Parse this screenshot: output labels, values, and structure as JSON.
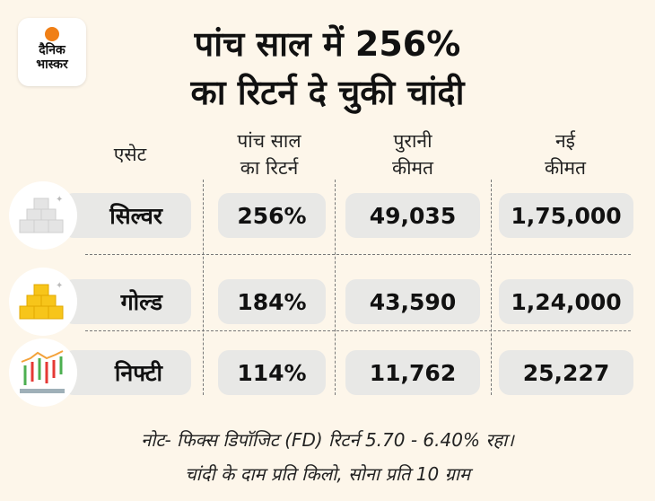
{
  "logo": {
    "line1": "दैनिक",
    "line2": "भास्कर",
    "color": "#f07f16"
  },
  "title": {
    "line1": "पांच साल में 256%",
    "line2": "का रिटर्न दे चुकी चांदी"
  },
  "headers": [
    "एसेट",
    "पांच साल\nका रिटर्न",
    "पुरानी\nकीमत",
    "नई\nकीमत"
  ],
  "rows": [
    {
      "asset": "सिल्वर",
      "icon": "silver-bars-icon",
      "return": "256%",
      "old_price": "49,035",
      "new_price": "1,75,000"
    },
    {
      "asset": "गोल्ड",
      "icon": "gold-bars-icon",
      "return": "184%",
      "old_price": "43,590",
      "new_price": "1,24,000"
    },
    {
      "asset": "निफ्टी",
      "icon": "candlestick-chart-icon",
      "return": "114%",
      "old_price": "11,762",
      "new_price": "25,227"
    }
  ],
  "notes": [
    "नोट- फिक्स डिपॉजिट (FD) रिटर्न 5.70 - 6.40% रहा।",
    "चांदी के दाम प्रति किलो, सोना प्रति 10 ग्राम"
  ]
}
